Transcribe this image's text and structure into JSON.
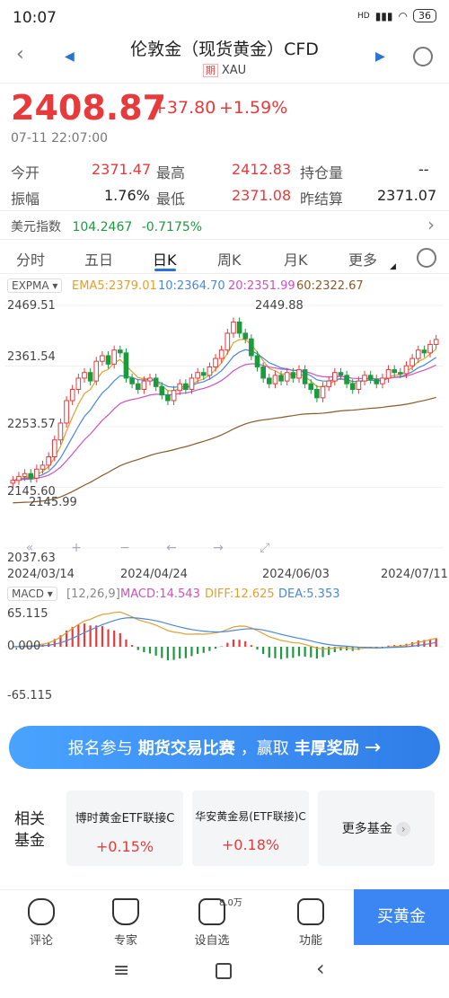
{
  "status_bar": {
    "time": "10:07",
    "network": "HD",
    "battery": "36"
  },
  "header": {
    "title": "伦敦金（现货黄金）CFD",
    "tag": "期",
    "symbol": "XAU"
  },
  "quote": {
    "price": "2408.87",
    "change": "+37.80",
    "change_pct": "+1.59%",
    "timestamp": "07-11 22:07:00",
    "open_label": "今开",
    "open": "2371.47",
    "high_label": "最高",
    "high": "2412.83",
    "oi_label": "持仓量",
    "oi": "--",
    "amp_label": "振幅",
    "amp": "1.76%",
    "low_label": "最低",
    "low": "2371.08",
    "prev_label": "昨结算",
    "prev": "2371.07",
    "usd_label": "美元指数",
    "usd_value": "104.2467",
    "usd_change": "-0.7175%"
  },
  "tabs": [
    {
      "label": "分时"
    },
    {
      "label": "五日"
    },
    {
      "label": "日K"
    },
    {
      "label": "周K"
    },
    {
      "label": "月K"
    },
    {
      "label": "更多"
    }
  ],
  "chart_data": {
    "type": "candlestick",
    "indicator": "EXPMA",
    "ema_labels": {
      "ema5": "EMA5:2379.01",
      "ema10": "10:2364.70",
      "ema20": "20:2351.99",
      "ema60": "60:2322.67"
    },
    "y_ticks": [
      "2469.51",
      "2361.54",
      "2253.57",
      "2145.60",
      "2037.63"
    ],
    "x_ticks": [
      "2024/03/14",
      "2024/04/24",
      "2024/06/03",
      "2024/07/11"
    ],
    "annotations": [
      "2449.88",
      "2145.99"
    ],
    "colors": {
      "up": "#e8393b",
      "down": "#1d9a3e",
      "ema5": "#e0a030",
      "ema10": "#4a88d8",
      "ema20": "#d050c0",
      "ema60": "#8a5a2a"
    },
    "close": [
      2158,
      2165,
      2170,
      2162,
      2178,
      2185,
      2200,
      2230,
      2260,
      2300,
      2320,
      2340,
      2350,
      2335,
      2370,
      2380,
      2365,
      2390,
      2385,
      2340,
      2330,
      2320,
      2335,
      2340,
      2325,
      2310,
      2300,
      2318,
      2330,
      2320,
      2340,
      2350,
      2345,
      2360,
      2375,
      2390,
      2420,
      2440,
      2420,
      2410,
      2380,
      2360,
      2340,
      2330,
      2345,
      2335,
      2350,
      2340,
      2355,
      2330,
      2320,
      2305,
      2325,
      2335,
      2350,
      2345,
      2330,
      2320,
      2335,
      2345,
      2338,
      2330,
      2340,
      2355,
      2350,
      2348,
      2362,
      2375,
      2390,
      2385,
      2400,
      2408.87
    ],
    "macd_panel": {
      "label": "MACD",
      "params": "[12,26,9]",
      "macd": "MACD:14.543",
      "diff": "DIFF:12.625",
      "dea": "DEA:5.353",
      "y_ticks": [
        "65.115",
        "0.000",
        "-65.115"
      ]
    }
  },
  "banner": {
    "text_a": "报名参与",
    "text_b": "期货交易比赛",
    "text_c": "，赢取",
    "text_d": "丰厚奖励"
  },
  "funds": {
    "title": "相关\n基金",
    "items": [
      {
        "name": "博时黄金ETF联接C",
        "value": "+0.15%"
      },
      {
        "name": "华安黄金易(ETF联接)C",
        "value": "+0.18%"
      },
      {
        "name": "更多基金"
      }
    ]
  },
  "bottom": {
    "items": [
      {
        "label": "评论"
      },
      {
        "label": "专家"
      },
      {
        "label": "设自选",
        "badge": "8.0万"
      },
      {
        "label": "功能"
      }
    ],
    "buy_label": "买黄金"
  }
}
